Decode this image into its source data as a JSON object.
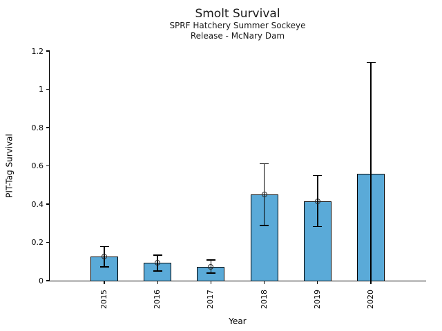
{
  "figure": {
    "title": "Smolt Survival",
    "subtitle_line1": "SPRF Hatchery Summer Sockeye",
    "subtitle_line2": "Release - McNary Dam"
  },
  "chart_data": {
    "type": "bar",
    "title": "Smolt Survival",
    "subtitle": [
      "SPRF Hatchery Summer Sockeye",
      "Release - McNary Dam"
    ],
    "xlabel": "Year",
    "ylabel": "PIT-Tag Survival",
    "categories": [
      "2015",
      "2016",
      "2017",
      "2018",
      "2019",
      "2020"
    ],
    "values": [
      0.127,
      0.095,
      0.073,
      0.452,
      0.415,
      0.558
    ],
    "error_low": [
      0.072,
      0.051,
      0.04,
      0.288,
      0.282,
      0.0
    ],
    "error_high": [
      0.178,
      0.134,
      0.108,
      0.61,
      0.549,
      1.14
    ],
    "point_markers": [
      0.127,
      0.095,
      0.073,
      0.452,
      0.415,
      null
    ],
    "ylim": [
      0,
      1.2
    ],
    "yticks": [
      0,
      0.2,
      0.4,
      0.6,
      0.8,
      1,
      1.2
    ],
    "ytick_labels": [
      "0",
      "0.2",
      "0.4",
      "0.6",
      "0.8",
      "1",
      "1.2"
    ],
    "grid": false,
    "legend": null,
    "bar_color": "#5aaad8",
    "bar_edge_color": "#000000",
    "error_color": "#000000",
    "marker_edge_color": "#2e2e2e",
    "marker_style": "open-circle"
  }
}
